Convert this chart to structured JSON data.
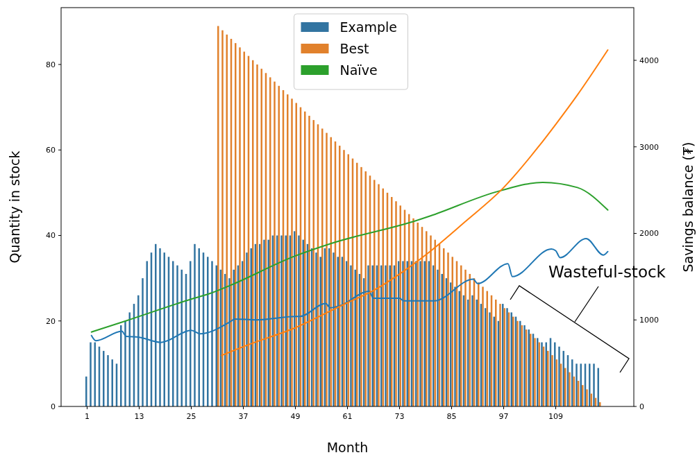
{
  "chart_data": {
    "type": "bar",
    "xlabel": "Month",
    "ylabel": "Quantity in stock",
    "y2label": "Savings balance (₮)",
    "xlim": [
      -5,
      127
    ],
    "xticks": [
      1,
      13,
      25,
      37,
      49,
      61,
      73,
      85,
      97,
      109
    ],
    "ylim": [
      0,
      93.3
    ],
    "yticks": [
      0,
      20,
      40,
      60,
      80
    ],
    "y2lim": [
      0,
      4609
    ],
    "y2ticks": [
      0,
      1000,
      2000,
      3000,
      4000
    ],
    "legend": "top",
    "grid": false,
    "marker": "none",
    "line_style": "solid",
    "annotations": [
      "Wasteful-stock"
    ],
    "series": [
      {
        "name": "Example",
        "color": "#3274a1",
        "x": [
          1,
          2,
          3,
          4,
          5,
          6,
          7,
          8,
          9,
          10,
          11,
          12,
          13,
          14,
          15,
          16,
          17,
          18,
          19,
          20,
          21,
          22,
          23,
          24,
          25,
          26,
          27,
          28,
          29,
          30,
          31,
          32,
          33,
          34,
          35,
          36,
          37,
          38,
          39,
          40,
          41,
          42,
          43,
          44,
          45,
          46,
          47,
          48,
          49,
          50,
          51,
          52,
          53,
          54,
          55,
          56,
          57,
          58,
          59,
          60,
          61,
          62,
          63,
          64,
          65,
          66,
          67,
          68,
          69,
          70,
          71,
          72,
          73,
          74,
          75,
          76,
          77,
          78,
          79,
          80,
          81,
          82,
          83,
          84,
          85,
          86,
          87,
          88,
          89,
          90,
          91,
          92,
          93,
          94,
          95,
          96,
          97,
          98,
          99,
          100,
          101,
          102,
          103,
          104,
          105,
          106,
          107,
          108,
          109,
          110,
          111,
          112,
          113,
          114,
          115,
          116,
          117,
          118,
          119
        ],
        "values": [
          7,
          15,
          15,
          14,
          13,
          12,
          11,
          10,
          19,
          20,
          22,
          24,
          26,
          30,
          34,
          36,
          38,
          37,
          36,
          35,
          34,
          33,
          32,
          31,
          34,
          38,
          37,
          36,
          35,
          34,
          33,
          32,
          31,
          30,
          32,
          33,
          34,
          36,
          37,
          38,
          38,
          39,
          39,
          40,
          40,
          40,
          40,
          40,
          41,
          40,
          39,
          38,
          37,
          36,
          35,
          37,
          37,
          36,
          35,
          35,
          34,
          33,
          32,
          31,
          30,
          33,
          33,
          33,
          33,
          33,
          33,
          33,
          34,
          34,
          34,
          34,
          34,
          34,
          34,
          34,
          33,
          32,
          31,
          30,
          29,
          28,
          27,
          26,
          25,
          26,
          25,
          24,
          23,
          22,
          21,
          20,
          24,
          23,
          22,
          21,
          20,
          19,
          18,
          17,
          16,
          15,
          15,
          16,
          15,
          14,
          13,
          12,
          11,
          10,
          10,
          10,
          10,
          10,
          9
        ]
      },
      {
        "name": "Best",
        "color": "#e1812c",
        "x": [
          31,
          32,
          33,
          34,
          35,
          36,
          37,
          38,
          39,
          40,
          41,
          42,
          43,
          44,
          45,
          46,
          47,
          48,
          49,
          50,
          51,
          52,
          53,
          54,
          55,
          56,
          57,
          58,
          59,
          60,
          61,
          62,
          63,
          64,
          65,
          66,
          67,
          68,
          69,
          70,
          71,
          72,
          73,
          74,
          75,
          76,
          77,
          78,
          79,
          80,
          81,
          82,
          83,
          84,
          85,
          86,
          87,
          88,
          89,
          90,
          91,
          92,
          93,
          94,
          95,
          96,
          97,
          98,
          99,
          100,
          101,
          102,
          103,
          104,
          105,
          106,
          107,
          108,
          109,
          110,
          111,
          112,
          113,
          114,
          115,
          116,
          117,
          118,
          119
        ],
        "values": [
          89,
          88,
          87,
          86,
          85,
          84,
          83,
          82,
          81,
          80,
          79,
          78,
          77,
          76,
          75,
          74,
          73,
          72,
          71,
          70,
          69,
          68,
          67,
          66,
          65,
          64,
          63,
          62,
          61,
          60,
          59,
          58,
          57,
          56,
          55,
          54,
          53,
          52,
          51,
          50,
          49,
          48,
          47,
          46,
          45,
          44,
          43,
          42,
          41,
          40,
          39,
          38,
          37,
          36,
          35,
          34,
          33,
          32,
          31,
          30,
          29,
          28,
          27,
          26,
          25,
          24,
          23,
          22,
          21,
          20,
          19,
          18,
          17,
          16,
          15,
          14,
          13,
          12,
          11,
          10,
          9,
          8,
          7,
          6,
          5,
          4,
          3,
          2,
          1
        ]
      },
      {
        "name": "Naïve",
        "type": "line",
        "axis": "y2",
        "color": "#2ca02c",
        "x": [
          2,
          10,
          25,
          29,
          34,
          49,
          57,
          77,
          80,
          96,
          106,
          114,
          121
        ],
        "values": [
          860,
          990,
          1240,
          1300,
          1400,
          1740,
          1880,
          2150,
          2200,
          2490,
          2590,
          2530,
          2270
        ]
      },
      {
        "type": "line",
        "axis": "y2",
        "color": "#1f77b4",
        "x": [
          2,
          3,
          9,
          10,
          13,
          18,
          25,
          27,
          34,
          35,
          40,
          49,
          50,
          56,
          57,
          59,
          66,
          67,
          73,
          74,
          81,
          90,
          91,
          98,
          99,
          108,
          109,
          110,
          116,
          120,
          121
        ],
        "values": [
          820,
          760,
          870,
          810,
          800,
          740,
          880,
          840,
          980,
          1010,
          1000,
          1040,
          1040,
          1190,
          1140,
          1160,
          1330,
          1250,
          1250,
          1220,
          1220,
          1470,
          1420,
          1650,
          1500,
          1820,
          1800,
          1720,
          1940,
          1750,
          1790
        ]
      },
      {
        "type": "line",
        "axis": "y2",
        "color": "#ff7f0e",
        "x": [
          32,
          38,
          49,
          61,
          67,
          73,
          80,
          88,
          97,
          105,
          109,
          114,
          121
        ],
        "values": [
          590,
          710,
          910,
          1200,
          1340,
          1530,
          1790,
          2130,
          2530,
          3000,
          3260,
          3600,
          4120
        ]
      }
    ]
  }
}
